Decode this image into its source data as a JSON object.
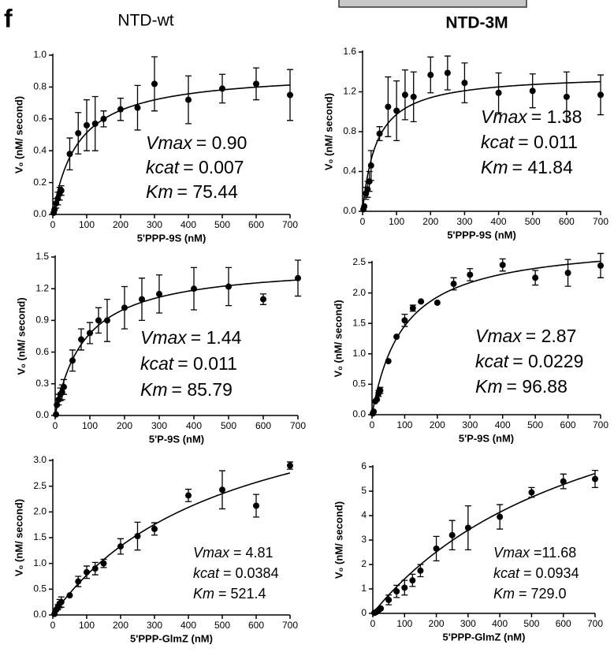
{
  "panel_label": "f",
  "column_titles": [
    "NTD-wt",
    "NTD-3M"
  ],
  "chart_data": [
    {
      "type": "scatter",
      "xlabel": "5'PPP-9S (nM)",
      "ylabel": "V₀ (nM/ second)",
      "xlim": [
        0,
        700
      ],
      "xticks": [
        0,
        100,
        200,
        300,
        400,
        500,
        600,
        700
      ],
      "ylim": [
        0,
        1
      ],
      "yticks": [
        {
          "value": 0,
          "label": "0.0"
        },
        0.2,
        0.4,
        0.6,
        0.8,
        {
          "value": 1,
          "label": "1.0"
        }
      ],
      "series": [
        {
          "color": "#000000",
          "x": [
            2.5,
            5,
            10,
            15,
            20,
            25,
            50,
            75,
            100,
            125,
            150,
            200,
            250,
            300,
            400,
            500,
            600,
            700
          ],
          "values": [
            0.01,
            0.03,
            0.07,
            0.1,
            0.13,
            0.15,
            0.38,
            0.51,
            0.56,
            0.57,
            0.6,
            0.66,
            0.67,
            0.82,
            0.72,
            0.79,
            0.82,
            0.75
          ],
          "errors": [
            0,
            0,
            0.03,
            0.04,
            0.04,
            0.03,
            0.1,
            0.13,
            0.16,
            0.17,
            0.05,
            0.07,
            0.14,
            0.17,
            0.15,
            0.09,
            0.1,
            0.16
          ]
        }
      ],
      "annotations": [
        {
          "name": "Vmax",
          "value": 0.9,
          "label": "= 0.90"
        },
        {
          "name": "kcat",
          "value": 0.007,
          "label": "= 0.007"
        },
        {
          "name": "Km",
          "value": 75.44,
          "label": "= 75.44"
        }
      ]
    },
    {
      "type": "scatter",
      "xlabel": "5'PPP-9S (nM)",
      "ylabel": "V₀ (nM/ second)",
      "xlim": [
        0,
        700
      ],
      "xticks": [
        0,
        100,
        200,
        300,
        400,
        500,
        600,
        700
      ],
      "ylim": [
        0,
        1.6
      ],
      "yticks": [
        {
          "value": 0,
          "label": "0.0"
        },
        0.4,
        0.8,
        1.2,
        1.6
      ],
      "series": [
        {
          "color": "#000000",
          "x": [
            2.5,
            5,
            10,
            15,
            20,
            25,
            50,
            75,
            100,
            125,
            150,
            200,
            250,
            300,
            400,
            500,
            600,
            700
          ],
          "values": [
            0.02,
            0.05,
            0.18,
            0.22,
            0.3,
            0.46,
            0.78,
            1.05,
            1.01,
            1.17,
            1.15,
            1.37,
            1.39,
            1.29,
            1.19,
            1.21,
            1.15,
            1.17
          ],
          "errors": [
            0,
            0,
            0.06,
            0.08,
            0.1,
            0.15,
            0.07,
            0.3,
            0.3,
            0.25,
            0.25,
            0.18,
            0.17,
            0.2,
            0.2,
            0.17,
            0.25,
            0.2
          ]
        }
      ],
      "annotations": [
        {
          "name": "Vmax",
          "value": 1.38,
          "label": "= 1.38"
        },
        {
          "name": "kcat",
          "value": 0.011,
          "label": "= 0.011"
        },
        {
          "name": "Km",
          "value": 41.84,
          "label": "= 41.84"
        }
      ]
    },
    {
      "type": "scatter",
      "xlabel": "5'P-9S (nM)",
      "ylabel": "V₀ (nM/ second)",
      "xlim": [
        0,
        700
      ],
      "xticks": [
        0,
        100,
        200,
        300,
        400,
        500,
        600,
        700
      ],
      "ylim": [
        0,
        1.5
      ],
      "yticks": [
        {
          "value": 0,
          "label": "0.0"
        },
        0.3,
        0.6,
        0.9,
        1.2,
        1.5
      ],
      "series": [
        {
          "color": "#000000",
          "x": [
            2.5,
            5,
            10,
            15,
            20,
            25,
            50,
            75,
            100,
            125,
            150,
            200,
            250,
            300,
            400,
            500,
            600,
            700
          ],
          "values": [
            0.01,
            0.1,
            0.15,
            0.2,
            0.22,
            0.27,
            0.52,
            0.72,
            0.78,
            0.9,
            0.9,
            1.02,
            1.1,
            1.15,
            1.2,
            1.22,
            1.1,
            1.3
          ],
          "errors": [
            0,
            0,
            0.05,
            0.06,
            0.07,
            0.07,
            0.1,
            0.1,
            0.1,
            0.12,
            0.2,
            0.2,
            0.2,
            0.18,
            0.2,
            0.18,
            0.05,
            0.17
          ]
        }
      ],
      "annotations": [
        {
          "name": "Vmax",
          "value": 1.44,
          "label": "= 1.44"
        },
        {
          "name": "kcat",
          "value": 0.011,
          "label": "= 0.011"
        },
        {
          "name": "Km",
          "value": 85.79,
          "label": "= 85.79"
        }
      ]
    },
    {
      "type": "scatter",
      "xlabel": "5'P-9S (nM)",
      "ylabel": "V₀ (nM/ second)",
      "xlim": [
        0,
        700
      ],
      "xticks": [
        0,
        100,
        200,
        300,
        400,
        500,
        600,
        700
      ],
      "ylim": [
        0,
        2.5
      ],
      "yticks": [
        {
          "value": 0,
          "label": "0.0"
        },
        0.5,
        {
          "value": 1,
          "label": "1.0"
        },
        1.5,
        {
          "value": 2,
          "label": "2.0"
        },
        2.5
      ],
      "series": [
        {
          "color": "#000000",
          "x": [
            2.5,
            5,
            10,
            15,
            20,
            25,
            50,
            75,
            100,
            125,
            150,
            200,
            250,
            300,
            400,
            500,
            600,
            700
          ],
          "values": [
            0.02,
            0.05,
            0.22,
            0.25,
            0.35,
            0.4,
            0.88,
            1.28,
            1.55,
            1.75,
            1.86,
            1.84,
            2.15,
            2.3,
            2.46,
            2.25,
            2.33,
            2.45
          ],
          "errors": [
            0,
            0,
            0,
            0,
            0.05,
            0.05,
            0,
            0,
            0.1,
            0.05,
            0,
            0,
            0.1,
            0.1,
            0.1,
            0.12,
            0.22,
            0.2
          ]
        }
      ],
      "annotations": [
        {
          "name": "Vmax",
          "value": 2.87,
          "label": "= 2.87"
        },
        {
          "name": "kcat",
          "value": 0.0229,
          "label": "= 0.0229"
        },
        {
          "name": "Km",
          "value": 96.88,
          "label": "= 96.88"
        }
      ]
    },
    {
      "type": "scatter",
      "xlabel": "5'PPP-GlmZ (nM)",
      "ylabel": "V₀ (nM/ second)",
      "xlim": [
        0,
        700
      ],
      "xticks": [
        0,
        100,
        200,
        300,
        400,
        500,
        600,
        700
      ],
      "ylim": [
        0,
        3
      ],
      "yticks": [
        {
          "value": 0,
          "label": "0.0"
        },
        0.5,
        {
          "value": 1,
          "label": "1.0"
        },
        1.5,
        {
          "value": 2,
          "label": "2.0"
        },
        2.5,
        {
          "value": 3,
          "label": "3.0"
        }
      ],
      "series": [
        {
          "color": "#000000",
          "x": [
            5,
            10,
            15,
            20,
            25,
            50,
            75,
            100,
            125,
            150,
            200,
            250,
            300,
            400,
            500,
            600,
            700
          ],
          "values": [
            0.02,
            0.1,
            0.15,
            0.22,
            0.25,
            0.38,
            0.65,
            0.83,
            0.9,
            1,
            1.33,
            1.53,
            1.67,
            2.32,
            2.43,
            2.12,
            2.9
          ],
          "errors": [
            0,
            0,
            0.05,
            0.08,
            0.1,
            0,
            0.1,
            0.12,
            0.12,
            0.08,
            0.15,
            0.27,
            0.12,
            0.12,
            0.37,
            0.22,
            0.07
          ]
        }
      ],
      "annotations": [
        {
          "name": "Vmax",
          "value": 4.81,
          "label": "= 4.81"
        },
        {
          "name": "kcat",
          "value": 0.0384,
          "label": "= 0.0384"
        },
        {
          "name": "Km",
          "value": 521.4,
          "label": "= 521.4"
        }
      ]
    },
    {
      "type": "scatter",
      "xlabel": "5'PPP-GlmZ (nM)",
      "ylabel": "V₀ (nM/ second)",
      "xlim": [
        0,
        700
      ],
      "xticks": [
        0,
        100,
        200,
        300,
        400,
        500,
        600,
        700
      ],
      "ylim": [
        0,
        6
      ],
      "yticks": [
        0,
        1,
        2,
        3,
        4,
        5,
        6
      ],
      "series": [
        {
          "color": "#000000",
          "x": [
            5,
            10,
            15,
            20,
            25,
            50,
            75,
            100,
            125,
            150,
            200,
            250,
            300,
            400,
            500,
            600,
            700
          ],
          "values": [
            0.02,
            0.05,
            0.1,
            0.15,
            0.2,
            0.55,
            0.9,
            1.05,
            1.35,
            1.75,
            2.65,
            3.2,
            3.5,
            3.95,
            4.95,
            5.4,
            5.5
          ],
          "errors": [
            0,
            0,
            0,
            0,
            0,
            0.2,
            0.25,
            0.3,
            0.25,
            0.25,
            0.5,
            0.6,
            0.9,
            0.5,
            0.2,
            0.3,
            0.35
          ]
        }
      ],
      "annotations": [
        {
          "name": "Vmax",
          "value": 11.68,
          "label": "=11.68"
        },
        {
          "name": "kcat",
          "value": 0.0934,
          "label": "= 0.0934"
        },
        {
          "name": "Km",
          "value": 729,
          "label": "= 729.0"
        }
      ]
    }
  ]
}
